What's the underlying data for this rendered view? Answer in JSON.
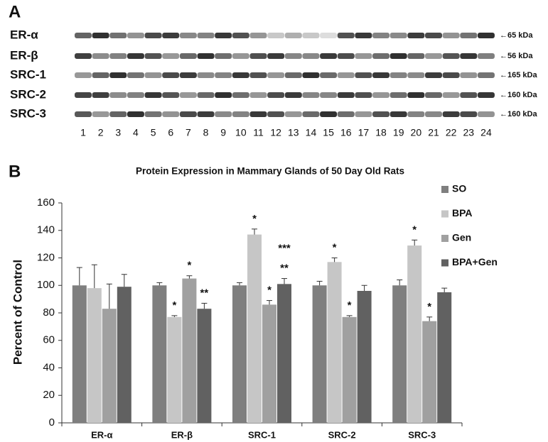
{
  "panel_labels": [
    "A",
    "B"
  ],
  "blot": {
    "rows": [
      {
        "name": "ER-α",
        "size": "←65 kDa"
      },
      {
        "name": "ER-β",
        "size": "←56 kDa"
      },
      {
        "name": "SRC-1",
        "size": "←165 kDa"
      },
      {
        "name": "SRC-2",
        "size": "←160 kDa"
      },
      {
        "name": "SRC-3",
        "size": "←160 kDa"
      }
    ],
    "lanes": [
      1,
      2,
      3,
      4,
      5,
      6,
      7,
      8,
      9,
      10,
      11,
      12,
      13,
      14,
      15,
      16,
      17,
      18,
      19,
      20,
      21,
      22,
      23,
      24
    ]
  },
  "chart_data": {
    "type": "bar",
    "title": "Protein Expression in Mammary Glands of 50 Day Old Rats",
    "y_label": "Percent of Control",
    "categories": [
      "ER-α",
      "ER-β",
      "SRC-1",
      "SRC-2",
      "SRC-3"
    ],
    "series": [
      {
        "name": "SO",
        "color": "#7f7f7f",
        "values": [
          100,
          100,
          100,
          100,
          100
        ],
        "errors": [
          13,
          2,
          2,
          3,
          4
        ]
      },
      {
        "name": "BPA",
        "color": "#c6c6c6",
        "values": [
          98,
          77,
          137,
          117,
          129
        ],
        "errors": [
          17,
          1,
          4,
          3,
          4
        ],
        "significance": [
          null,
          [
            "*"
          ],
          [
            "*"
          ],
          [
            "*"
          ],
          [
            "*"
          ]
        ]
      },
      {
        "name": "Gen",
        "color": "#a0a0a0",
        "values": [
          83,
          105,
          86,
          77,
          74
        ],
        "errors": [
          18,
          2,
          3,
          1,
          3
        ],
        "significance": [
          null,
          [
            "*"
          ],
          [
            "*"
          ],
          [
            "*"
          ],
          [
            "*"
          ]
        ]
      },
      {
        "name": "BPA+Gen",
        "color": "#616161",
        "values": [
          99,
          83,
          101,
          96,
          95
        ],
        "errors": [
          9,
          4,
          4,
          4,
          3
        ],
        "significance": [
          null,
          [
            "**"
          ],
          [
            "**",
            "***"
          ],
          null,
          null
        ]
      }
    ],
    "ylim": [
      0,
      160
    ],
    "yticks": [
      0,
      20,
      40,
      60,
      80,
      100,
      120,
      140,
      160
    ],
    "grid": false,
    "legend": "right"
  }
}
